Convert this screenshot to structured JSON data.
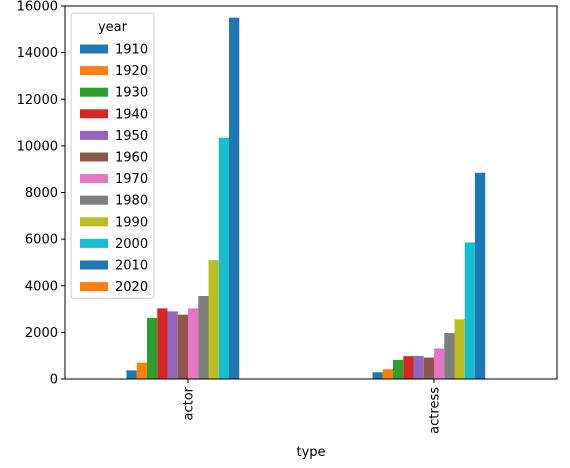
{
  "chart_data": {
    "type": "bar",
    "title": "",
    "xlabel": "type",
    "ylabel": "",
    "categories": [
      "actor",
      "actress"
    ],
    "ylim": [
      0,
      16000
    ],
    "yticks": [
      0,
      2000,
      4000,
      6000,
      8000,
      10000,
      12000,
      14000,
      16000
    ],
    "grid": false,
    "legend": {
      "title": "year",
      "position": "top-left"
    },
    "series": [
      {
        "name": "1910",
        "color": "#1f77b4",
        "values": [
          370,
          290
        ]
      },
      {
        "name": "1920",
        "color": "#ff7f0e",
        "values": [
          700,
          420
        ]
      },
      {
        "name": "1930",
        "color": "#2ca02c",
        "values": [
          2620,
          820
        ]
      },
      {
        "name": "1940",
        "color": "#d62728",
        "values": [
          3030,
          980
        ]
      },
      {
        "name": "1950",
        "color": "#9467bd",
        "values": [
          2900,
          990
        ]
      },
      {
        "name": "1960",
        "color": "#8c564b",
        "values": [
          2760,
          920
        ]
      },
      {
        "name": "1970",
        "color": "#e377c2",
        "values": [
          3030,
          1310
        ]
      },
      {
        "name": "1980",
        "color": "#7f7f7f",
        "values": [
          3560,
          1970
        ]
      },
      {
        "name": "1990",
        "color": "#bcbd22",
        "values": [
          5100,
          2560
        ]
      },
      {
        "name": "2000",
        "color": "#17becf",
        "values": [
          10350,
          5860
        ]
      },
      {
        "name": "2010",
        "color": "#1f77b4",
        "values": [
          15500,
          8850
        ]
      },
      {
        "name": "2020",
        "color": "#ff7f0e",
        "values": [
          0,
          0
        ]
      }
    ]
  }
}
